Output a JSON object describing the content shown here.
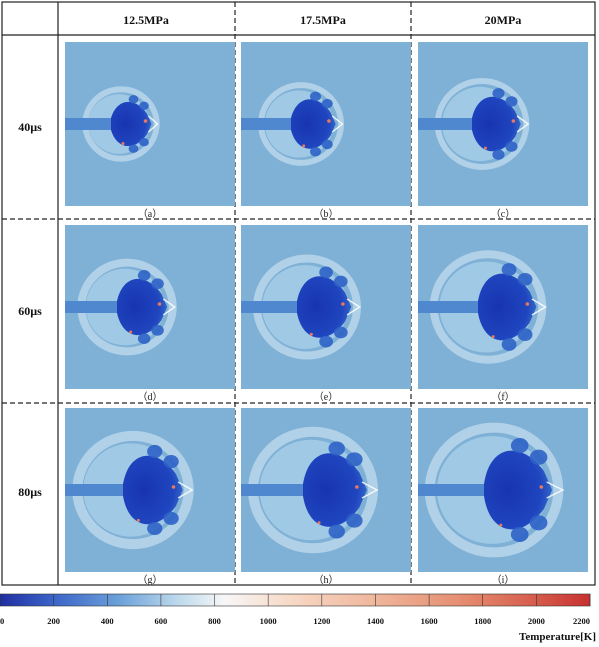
{
  "columns": [
    "12.5MPa",
    "17.5MPa",
    "20MPa"
  ],
  "rows": [
    "40µs",
    "60µs",
    "80µs"
  ],
  "subfigure_labels": [
    "（a）",
    "（b）",
    "（c）",
    "（d）",
    "（e）",
    "（f）",
    "（g）",
    "（h）",
    "（i）"
  ],
  "colorbar": {
    "title": "Temperature[K]",
    "ticks": [
      "0",
      "200",
      "400",
      "600",
      "800",
      "1000",
      "1200",
      "1400",
      "1600",
      "1800",
      "2000",
      "2200"
    ],
    "colormap": [
      "#1f2fa0",
      "#3b63c9",
      "#6aa0d8",
      "#bcd8ec",
      "#f7f7f7",
      "#f7d7c4",
      "#efb59a",
      "#e58e72",
      "#d75f4e",
      "#c73030"
    ]
  },
  "colors": {
    "background_field": "#7fb0d6",
    "deep_core": "#1e3fb8",
    "mid_core": "#2f63c6",
    "shock_light": "#d9ecf6",
    "hot_spot": "#e9785e"
  }
}
